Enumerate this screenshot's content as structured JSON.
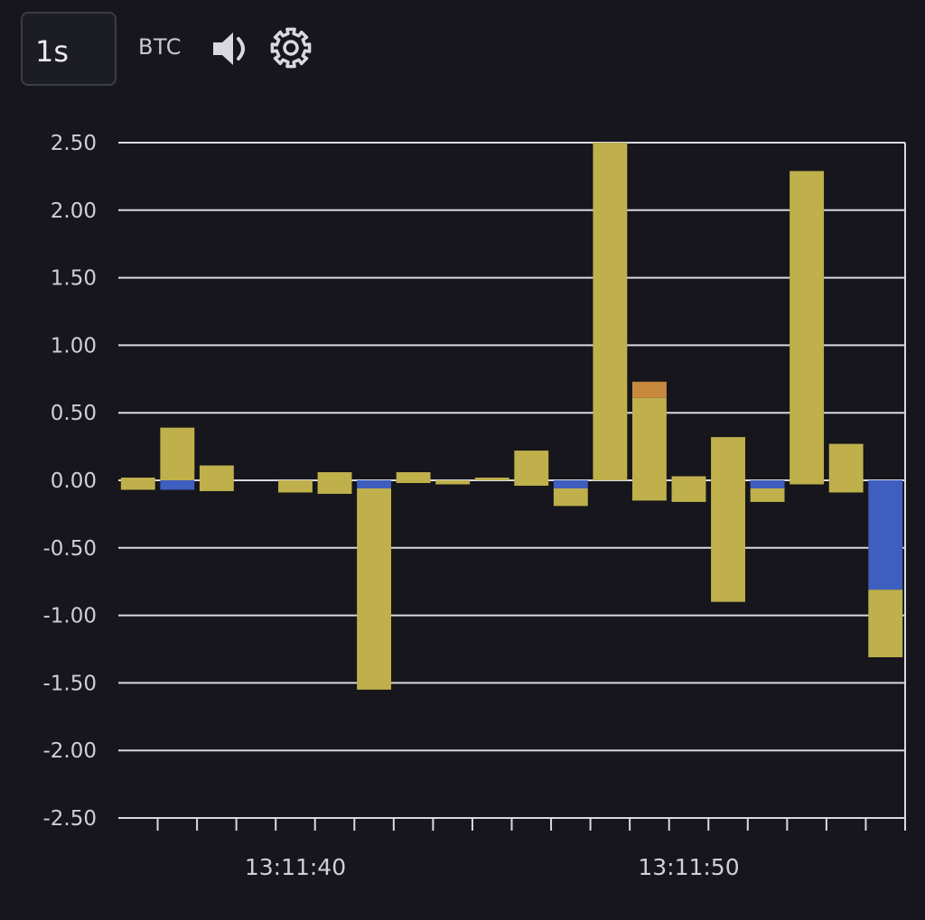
{
  "toolbar": {
    "interval_label": "1s",
    "symbol_label": "BTC",
    "sound_icon": "speaker-icon",
    "settings_icon": "gear-icon"
  },
  "colors": {
    "background": "#16161c",
    "grid": "#d9d9df",
    "buy": "#bfb04c",
    "sell": "#3f5fc0",
    "large": "#c8893e"
  },
  "chart_data": {
    "type": "bar",
    "ylim": [
      -2.5,
      2.5
    ],
    "yticks": [
      "2.50",
      "2.00",
      "1.50",
      "1.00",
      "0.50",
      "0.00",
      "-0.50",
      "-1.00",
      "-1.50",
      "-2.00",
      "-2.50"
    ],
    "xtick_labels": [
      {
        "label": "13:11:40",
        "index": 4.5
      },
      {
        "label": "13:11:50",
        "index": 14.5
      }
    ],
    "bar_count": 20,
    "segments": [
      {
        "i": 0,
        "y0": 0,
        "y1": 0.02,
        "kind": "buy"
      },
      {
        "i": 0,
        "y0": 0,
        "y1": -0.07,
        "kind": "buy"
      },
      {
        "i": 1,
        "y0": 0,
        "y1": 0.39,
        "kind": "buy"
      },
      {
        "i": 1,
        "y0": 0,
        "y1": -0.07,
        "kind": "sell"
      },
      {
        "i": 2,
        "y0": 0,
        "y1": 0.11,
        "kind": "buy"
      },
      {
        "i": 2,
        "y0": 0,
        "y1": -0.08,
        "kind": "buy"
      },
      {
        "i": 4,
        "y0": 0,
        "y1": -0.09,
        "kind": "buy"
      },
      {
        "i": 5,
        "y0": 0,
        "y1": 0.06,
        "kind": "buy"
      },
      {
        "i": 5,
        "y0": 0,
        "y1": -0.1,
        "kind": "buy"
      },
      {
        "i": 6,
        "y0": 0,
        "y1": -0.06,
        "kind": "sell"
      },
      {
        "i": 6,
        "y0": -0.06,
        "y1": -1.55,
        "kind": "buy"
      },
      {
        "i": 7,
        "y0": 0,
        "y1": 0.06,
        "kind": "buy"
      },
      {
        "i": 7,
        "y0": 0,
        "y1": -0.02,
        "kind": "buy"
      },
      {
        "i": 8,
        "y0": 0,
        "y1": -0.03,
        "kind": "buy"
      },
      {
        "i": 9,
        "y0": 0,
        "y1": 0.02,
        "kind": "buy"
      },
      {
        "i": 10,
        "y0": 0,
        "y1": 0.22,
        "kind": "buy"
      },
      {
        "i": 10,
        "y0": 0,
        "y1": -0.04,
        "kind": "buy"
      },
      {
        "i": 11,
        "y0": 0,
        "y1": -0.06,
        "kind": "sell"
      },
      {
        "i": 11,
        "y0": -0.06,
        "y1": -0.19,
        "kind": "buy"
      },
      {
        "i": 12,
        "y0": 0,
        "y1": 2.5,
        "kind": "buy"
      },
      {
        "i": 13,
        "y0": 0,
        "y1": 0.61,
        "kind": "buy"
      },
      {
        "i": 13,
        "y0": 0.61,
        "y1": 0.73,
        "kind": "large"
      },
      {
        "i": 13,
        "y0": 0,
        "y1": -0.15,
        "kind": "buy"
      },
      {
        "i": 14,
        "y0": 0,
        "y1": 0.03,
        "kind": "buy"
      },
      {
        "i": 14,
        "y0": 0,
        "y1": -0.16,
        "kind": "buy"
      },
      {
        "i": 15,
        "y0": 0,
        "y1": 0.32,
        "kind": "buy"
      },
      {
        "i": 15,
        "y0": 0,
        "y1": -0.9,
        "kind": "buy"
      },
      {
        "i": 16,
        "y0": 0,
        "y1": -0.06,
        "kind": "sell"
      },
      {
        "i": 16,
        "y0": -0.06,
        "y1": -0.16,
        "kind": "buy"
      },
      {
        "i": 17,
        "y0": 0,
        "y1": 2.29,
        "kind": "buy"
      },
      {
        "i": 17,
        "y0": 0,
        "y1": -0.03,
        "kind": "buy"
      },
      {
        "i": 18,
        "y0": 0,
        "y1": 0.27,
        "kind": "buy"
      },
      {
        "i": 18,
        "y0": 0,
        "y1": -0.09,
        "kind": "buy"
      },
      {
        "i": 19,
        "y0": 0,
        "y1": -0.81,
        "kind": "sell"
      },
      {
        "i": 19,
        "y0": -0.81,
        "y1": -1.31,
        "kind": "buy"
      }
    ]
  }
}
